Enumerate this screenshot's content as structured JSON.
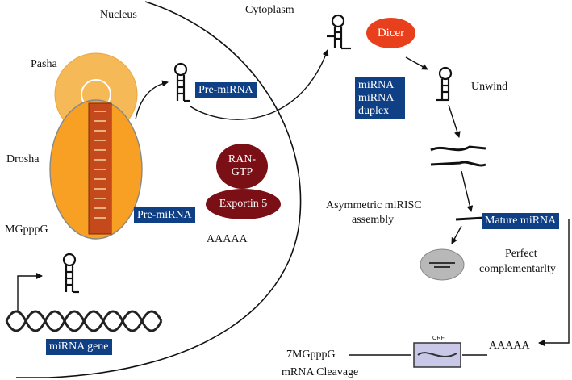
{
  "labels": {
    "nucleus": "Nucleus",
    "cytoplasm": "Cytoplasm",
    "pasha": "Pasha",
    "drosha": "Drosha",
    "mgpppg": "MGpppG",
    "aaaaa_left": "AAAAA",
    "unwind": "Unwind",
    "asymmetric_line1": "Asymmetric miRISC",
    "asymmetric_line2": "assembly",
    "perfect_line1": "Perfect",
    "perfect_line2": "complementarlty",
    "aaaaa_right": "AAAAA",
    "seven_mgpppg": "7MGpppG",
    "mrna_cleavage": "mRNA Cleavage"
  },
  "boxes": {
    "pre_mirna_top": "Pre-miRNA",
    "pre_mirna_left": "Pre-miRNA",
    "duplex_line1": "miRNA",
    "duplex_line2": "miRNA",
    "duplex_line3": "duplex",
    "mature_mirna": "Mature miRNA",
    "mirna_gene": "miRNA gene"
  },
  "proteins": {
    "dicer": "Dicer",
    "ran_gtp_line1": "RAN-",
    "ran_gtp_line2": "GTP",
    "exportin": "Exportin 5"
  },
  "colors": {
    "box_blue": "#0f3f84",
    "dicer_red": "#e8401c",
    "protein_maroon": "#7a1016",
    "drosha_orange": "#f7a024",
    "pasha_orange": "#f6b957"
  }
}
